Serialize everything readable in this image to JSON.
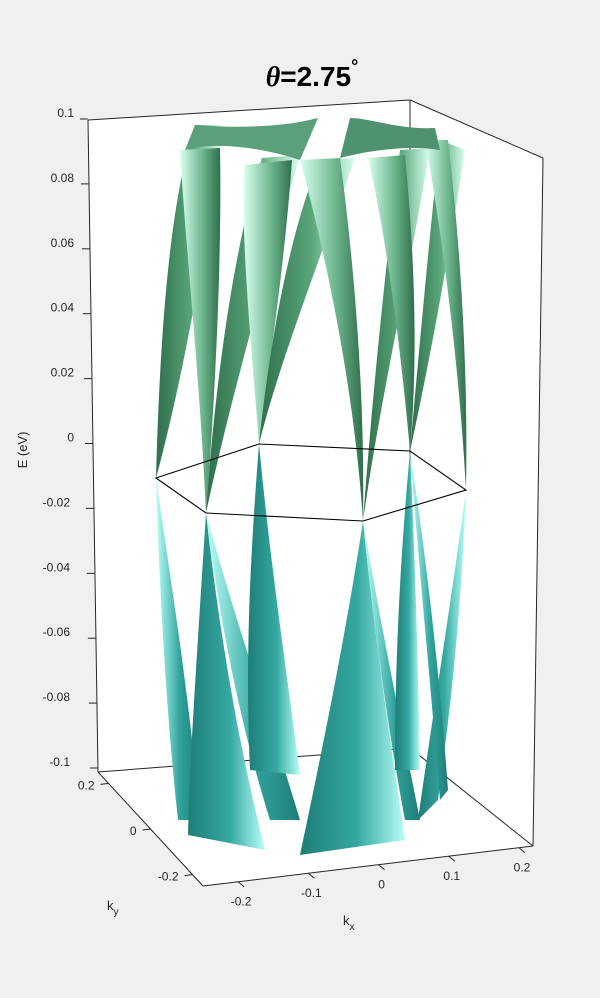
{
  "chart_data": {
    "type": "surface3d",
    "title": "θ=2.75°",
    "title_symbol": "θ",
    "title_value": "=2.75",
    "title_unit": "°",
    "zlabel": "E (eV)",
    "xlabel": "k",
    "xlabel_sub": "x",
    "ylabel": "k",
    "ylabel_sub": "y",
    "zlim": [
      -0.1,
      0.1
    ],
    "xlim": [
      -0.25,
      0.22
    ],
    "ylim": [
      -0.25,
      0.25
    ],
    "z_ticks": [
      0.1,
      0.08,
      0.06,
      0.04,
      0.02,
      0,
      -0.02,
      -0.04,
      -0.06,
      -0.08,
      -0.1
    ],
    "z_tick_labels": [
      "0.1",
      "0.08",
      "0.06",
      "0.04",
      "0.02",
      "0",
      "-0.02",
      "-0.04",
      "-0.06",
      "-0.08",
      "-0.1"
    ],
    "x_ticks": [
      -0.2,
      -0.1,
      0,
      0.1,
      0.2
    ],
    "x_tick_labels": [
      "-0.2",
      "-0.1",
      "0",
      "0.1",
      "0.2"
    ],
    "y_ticks": [
      0.2,
      0,
      -0.2
    ],
    "y_tick_labels": [
      "0.2",
      "0",
      "-0.2"
    ],
    "brillouin_zone": "hexagon at E = 0",
    "dirac_points_count": 6,
    "colormap": {
      "upper_dark": "#2f6e4c",
      "upper_light": "#d8fff0",
      "lower_dark": "#1f7d78",
      "lower_light": "#b8fff9"
    },
    "box_color": "#262626",
    "background": "#f0f0f0",
    "axes_background": "#ffffff"
  }
}
